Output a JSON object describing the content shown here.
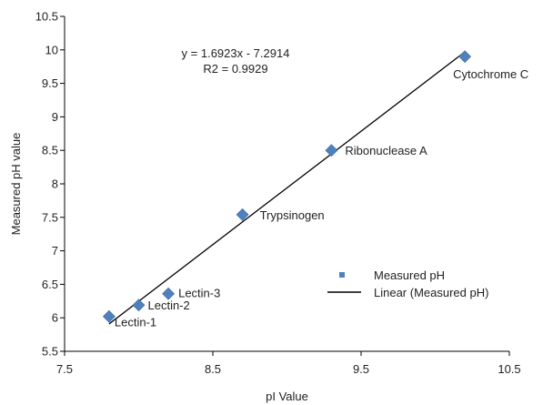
{
  "chart_data": {
    "type": "scatter",
    "xlabel": "pI Value",
    "ylabel": "Measured pH value",
    "xlim": [
      7.5,
      10.5
    ],
    "ylim": [
      5.5,
      10.5
    ],
    "x_ticks": [
      "7.5",
      "8.5",
      "9.5",
      "10.5"
    ],
    "y_ticks": [
      "5.5",
      "6",
      "6.5",
      "7",
      "7.5",
      "8",
      "8.5",
      "9",
      "9.5",
      "10",
      "10.5"
    ],
    "grid": false,
    "legend_position": "bottom-right",
    "series": [
      {
        "name": "Measured pH",
        "color": "#4f81bd",
        "marker": "diamond",
        "points": [
          {
            "label": "Lectin-1",
            "x": 7.8,
            "y": 6.02
          },
          {
            "label": "Lectin-2",
            "x": 8.0,
            "y": 6.19
          },
          {
            "label": "Lectin-3",
            "x": 8.2,
            "y": 6.36
          },
          {
            "label": "Trypsinogen",
            "x": 8.7,
            "y": 7.54
          },
          {
            "label": "Ribonuclease A",
            "x": 9.3,
            "y": 8.5
          },
          {
            "label": "Cytochrome C",
            "x": 10.2,
            "y": 9.9
          }
        ]
      }
    ],
    "trendline": {
      "name": "Linear (Measured pH)",
      "color": "#000000",
      "slope": 1.6923,
      "intercept": -7.2914,
      "x_range": [
        7.8,
        10.2
      ],
      "equation": "y = 1.6923x - 7.2914",
      "r2": "R2 = 0.9929"
    }
  }
}
